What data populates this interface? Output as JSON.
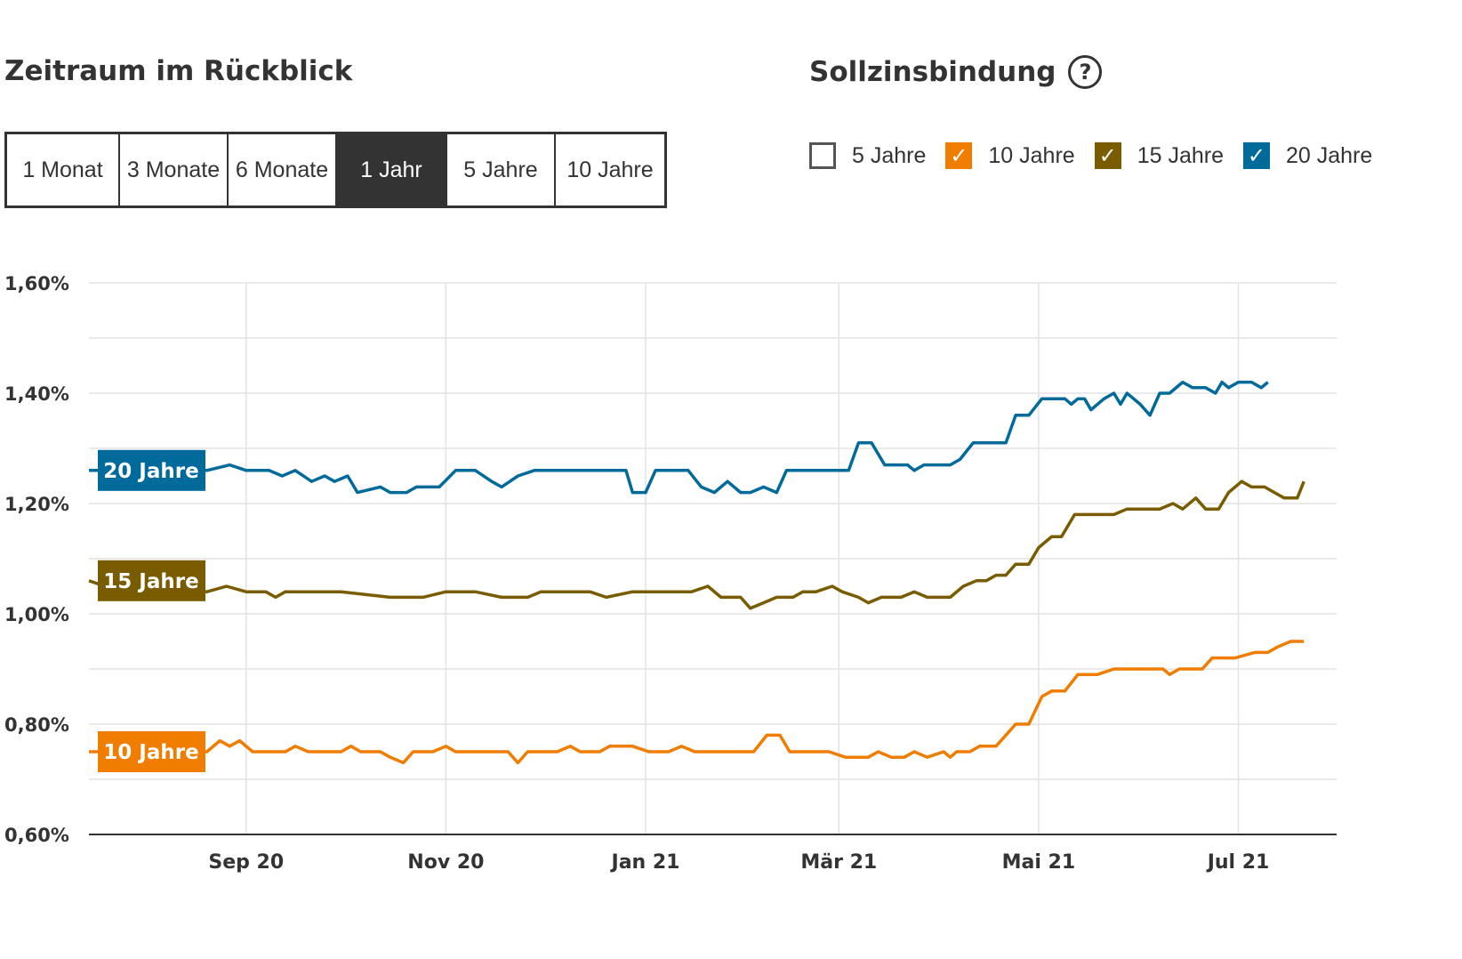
{
  "period": {
    "heading": "Zeitraum im Rückblick",
    "options": [
      {
        "label": "1 Monat",
        "active": false
      },
      {
        "label": "3 Monate",
        "active": false
      },
      {
        "label": "6 Monate",
        "active": false
      },
      {
        "label": "1 Jahr",
        "active": true
      },
      {
        "label": "5 Jahre",
        "active": false
      },
      {
        "label": "10 Jahre",
        "active": false
      }
    ]
  },
  "fixation": {
    "heading": "Sollzinsbindung",
    "help_icon": "question-circle-icon",
    "options": [
      {
        "label": "5 Jahre",
        "checked": false,
        "color": "#ffffff"
      },
      {
        "label": "10 Jahre",
        "checked": true,
        "color": "#f07d00"
      },
      {
        "label": "15 Jahre",
        "checked": true,
        "color": "#7a5c00"
      },
      {
        "label": "20 Jahre",
        "checked": true,
        "color": "#006b9a"
      }
    ]
  },
  "chart_data": {
    "type": "line",
    "title": "",
    "xlabel": "",
    "ylabel": "",
    "ylim": [
      0.6,
      1.6
    ],
    "y_ticks": [
      "0,60%",
      "0,80%",
      "1,00%",
      "1,20%",
      "1,40%",
      "1,60%"
    ],
    "x_ticks": [
      {
        "date": "2020-09-01",
        "label": "Sep 20"
      },
      {
        "date": "2020-11-01",
        "label": "Nov 20"
      },
      {
        "date": "2021-01-01",
        "label": "Jan 21"
      },
      {
        "date": "2021-03-01",
        "label": "Mär 21"
      },
      {
        "date": "2021-05-01",
        "label": "Mai 21"
      },
      {
        "date": "2021-07-01",
        "label": "Jul 21"
      }
    ],
    "x_range": [
      "2020-07-15",
      "2021-07-31"
    ],
    "grid": true,
    "series": [
      {
        "name": "20 Jahre",
        "color": "#006b9a",
        "points": [
          [
            "2020-07-15",
            1.26
          ],
          [
            "2020-08-20",
            1.26
          ],
          [
            "2020-08-27",
            1.27
          ],
          [
            "2020-09-01",
            1.26
          ],
          [
            "2020-09-08",
            1.26
          ],
          [
            "2020-09-12",
            1.25
          ],
          [
            "2020-09-16",
            1.26
          ],
          [
            "2020-09-21",
            1.24
          ],
          [
            "2020-09-25",
            1.25
          ],
          [
            "2020-09-28",
            1.24
          ],
          [
            "2020-10-02",
            1.25
          ],
          [
            "2020-10-05",
            1.22
          ],
          [
            "2020-10-12",
            1.23
          ],
          [
            "2020-10-15",
            1.22
          ],
          [
            "2020-10-20",
            1.22
          ],
          [
            "2020-10-23",
            1.23
          ],
          [
            "2020-10-30",
            1.23
          ],
          [
            "2020-11-04",
            1.26
          ],
          [
            "2020-11-10",
            1.26
          ],
          [
            "2020-11-15",
            1.24
          ],
          [
            "2020-11-18",
            1.23
          ],
          [
            "2020-11-23",
            1.25
          ],
          [
            "2020-11-28",
            1.26
          ],
          [
            "2020-12-05",
            1.26
          ],
          [
            "2020-12-15",
            1.26
          ],
          [
            "2020-12-20",
            1.26
          ],
          [
            "2020-12-26",
            1.26
          ],
          [
            "2020-12-28",
            1.22
          ],
          [
            "2021-01-01",
            1.22
          ],
          [
            "2021-01-04",
            1.26
          ],
          [
            "2021-01-08",
            1.26
          ],
          [
            "2021-01-14",
            1.26
          ],
          [
            "2021-01-18",
            1.23
          ],
          [
            "2021-01-22",
            1.22
          ],
          [
            "2021-01-26",
            1.24
          ],
          [
            "2021-01-30",
            1.22
          ],
          [
            "2021-02-02",
            1.22
          ],
          [
            "2021-02-06",
            1.23
          ],
          [
            "2021-02-10",
            1.22
          ],
          [
            "2021-02-13",
            1.26
          ],
          [
            "2021-02-18",
            1.26
          ],
          [
            "2021-02-22",
            1.26
          ],
          [
            "2021-02-25",
            1.26
          ],
          [
            "2021-03-04",
            1.26
          ],
          [
            "2021-03-07",
            1.31
          ],
          [
            "2021-03-11",
            1.31
          ],
          [
            "2021-03-15",
            1.27
          ],
          [
            "2021-03-22",
            1.27
          ],
          [
            "2021-03-24",
            1.26
          ],
          [
            "2021-03-27",
            1.27
          ],
          [
            "2021-03-30",
            1.27
          ],
          [
            "2021-04-04",
            1.27
          ],
          [
            "2021-04-07",
            1.28
          ],
          [
            "2021-04-11",
            1.31
          ],
          [
            "2021-04-18",
            1.31
          ],
          [
            "2021-04-21",
            1.31
          ],
          [
            "2021-04-24",
            1.36
          ],
          [
            "2021-04-28",
            1.36
          ],
          [
            "2021-05-02",
            1.39
          ],
          [
            "2021-05-09",
            1.39
          ],
          [
            "2021-05-11",
            1.38
          ],
          [
            "2021-05-13",
            1.39
          ],
          [
            "2021-05-15",
            1.39
          ],
          [
            "2021-05-17",
            1.37
          ],
          [
            "2021-05-19",
            1.38
          ],
          [
            "2021-05-21",
            1.39
          ],
          [
            "2021-05-24",
            1.4
          ],
          [
            "2021-05-26",
            1.38
          ],
          [
            "2021-05-28",
            1.4
          ],
          [
            "2021-06-01",
            1.38
          ],
          [
            "2021-06-04",
            1.36
          ],
          [
            "2021-06-07",
            1.4
          ],
          [
            "2021-06-10",
            1.4
          ],
          [
            "2021-06-14",
            1.42
          ],
          [
            "2021-06-17",
            1.41
          ],
          [
            "2021-06-21",
            1.41
          ],
          [
            "2021-06-24",
            1.4
          ],
          [
            "2021-06-26",
            1.42
          ],
          [
            "2021-06-28",
            1.41
          ],
          [
            "2021-07-01",
            1.42
          ],
          [
            "2021-07-03",
            1.42
          ],
          [
            "2021-07-05",
            1.42
          ],
          [
            "2021-07-08",
            1.41
          ],
          [
            "2021-07-10",
            1.42
          ]
        ]
      },
      {
        "name": "15 Jahre",
        "color": "#7a5c00",
        "points": [
          [
            "2020-07-15",
            1.06
          ],
          [
            "2020-07-20",
            1.05
          ],
          [
            "2020-08-20",
            1.04
          ],
          [
            "2020-08-26",
            1.05
          ],
          [
            "2020-09-01",
            1.04
          ],
          [
            "2020-09-07",
            1.04
          ],
          [
            "2020-09-10",
            1.03
          ],
          [
            "2020-09-13",
            1.04
          ],
          [
            "2020-09-30",
            1.04
          ],
          [
            "2020-10-15",
            1.03
          ],
          [
            "2020-10-25",
            1.03
          ],
          [
            "2020-11-01",
            1.04
          ],
          [
            "2020-11-10",
            1.04
          ],
          [
            "2020-11-18",
            1.03
          ],
          [
            "2020-11-26",
            1.03
          ],
          [
            "2020-11-30",
            1.04
          ],
          [
            "2020-12-15",
            1.04
          ],
          [
            "2020-12-20",
            1.03
          ],
          [
            "2020-12-28",
            1.04
          ],
          [
            "2021-01-05",
            1.04
          ],
          [
            "2021-01-10",
            1.04
          ],
          [
            "2021-01-15",
            1.04
          ],
          [
            "2021-01-20",
            1.05
          ],
          [
            "2021-01-24",
            1.03
          ],
          [
            "2021-01-30",
            1.03
          ],
          [
            "2021-02-02",
            1.01
          ],
          [
            "2021-02-06",
            1.02
          ],
          [
            "2021-02-10",
            1.03
          ],
          [
            "2021-02-15",
            1.03
          ],
          [
            "2021-02-18",
            1.04
          ],
          [
            "2021-02-22",
            1.04
          ],
          [
            "2021-02-27",
            1.05
          ],
          [
            "2021-03-02",
            1.04
          ],
          [
            "2021-03-07",
            1.03
          ],
          [
            "2021-03-10",
            1.02
          ],
          [
            "2021-03-14",
            1.03
          ],
          [
            "2021-03-20",
            1.03
          ],
          [
            "2021-03-24",
            1.04
          ],
          [
            "2021-03-28",
            1.03
          ],
          [
            "2021-04-04",
            1.03
          ],
          [
            "2021-04-08",
            1.05
          ],
          [
            "2021-04-12",
            1.06
          ],
          [
            "2021-04-15",
            1.06
          ],
          [
            "2021-04-18",
            1.07
          ],
          [
            "2021-04-21",
            1.07
          ],
          [
            "2021-04-24",
            1.09
          ],
          [
            "2021-04-28",
            1.09
          ],
          [
            "2021-05-01",
            1.12
          ],
          [
            "2021-05-05",
            1.14
          ],
          [
            "2021-05-08",
            1.14
          ],
          [
            "2021-05-12",
            1.18
          ],
          [
            "2021-05-19",
            1.18
          ],
          [
            "2021-05-24",
            1.18
          ],
          [
            "2021-05-28",
            1.19
          ],
          [
            "2021-06-01",
            1.19
          ],
          [
            "2021-06-07",
            1.19
          ],
          [
            "2021-06-11",
            1.2
          ],
          [
            "2021-06-14",
            1.19
          ],
          [
            "2021-06-18",
            1.21
          ],
          [
            "2021-06-21",
            1.19
          ],
          [
            "2021-06-25",
            1.19
          ],
          [
            "2021-06-28",
            1.22
          ],
          [
            "2021-07-02",
            1.24
          ],
          [
            "2021-07-05",
            1.23
          ],
          [
            "2021-07-09",
            1.23
          ],
          [
            "2021-07-12",
            1.22
          ],
          [
            "2021-07-15",
            1.21
          ],
          [
            "2021-07-19",
            1.21
          ],
          [
            "2021-07-21",
            1.24
          ]
        ]
      },
      {
        "name": "10 Jahre",
        "color": "#f07d00",
        "points": [
          [
            "2020-07-15",
            0.75
          ],
          [
            "2020-08-20",
            0.75
          ],
          [
            "2020-08-24",
            0.77
          ],
          [
            "2020-08-27",
            0.76
          ],
          [
            "2020-08-30",
            0.77
          ],
          [
            "2020-09-03",
            0.75
          ],
          [
            "2020-09-13",
            0.75
          ],
          [
            "2020-09-16",
            0.76
          ],
          [
            "2020-09-20",
            0.75
          ],
          [
            "2020-09-30",
            0.75
          ],
          [
            "2020-10-03",
            0.76
          ],
          [
            "2020-10-06",
            0.75
          ],
          [
            "2020-10-12",
            0.75
          ],
          [
            "2020-10-15",
            0.74
          ],
          [
            "2020-10-19",
            0.73
          ],
          [
            "2020-10-22",
            0.75
          ],
          [
            "2020-10-28",
            0.75
          ],
          [
            "2020-11-01",
            0.76
          ],
          [
            "2020-11-04",
            0.75
          ],
          [
            "2020-11-20",
            0.75
          ],
          [
            "2020-11-23",
            0.73
          ],
          [
            "2020-11-26",
            0.75
          ],
          [
            "2020-12-05",
            0.75
          ],
          [
            "2020-12-09",
            0.76
          ],
          [
            "2020-12-12",
            0.75
          ],
          [
            "2020-12-18",
            0.75
          ],
          [
            "2020-12-21",
            0.76
          ],
          [
            "2020-12-28",
            0.76
          ],
          [
            "2021-01-02",
            0.75
          ],
          [
            "2021-01-08",
            0.75
          ],
          [
            "2021-01-12",
            0.76
          ],
          [
            "2021-01-16",
            0.75
          ],
          [
            "2021-01-22",
            0.75
          ],
          [
            "2021-02-03",
            0.75
          ],
          [
            "2021-02-07",
            0.78
          ],
          [
            "2021-02-11",
            0.78
          ],
          [
            "2021-02-14",
            0.75
          ],
          [
            "2021-02-22",
            0.75
          ],
          [
            "2021-02-26",
            0.75
          ],
          [
            "2021-03-03",
            0.74
          ],
          [
            "2021-03-10",
            0.74
          ],
          [
            "2021-03-13",
            0.75
          ],
          [
            "2021-03-17",
            0.74
          ],
          [
            "2021-03-21",
            0.74
          ],
          [
            "2021-03-24",
            0.75
          ],
          [
            "2021-03-28",
            0.74
          ],
          [
            "2021-04-02",
            0.75
          ],
          [
            "2021-04-04",
            0.74
          ],
          [
            "2021-04-06",
            0.75
          ],
          [
            "2021-04-10",
            0.75
          ],
          [
            "2021-04-13",
            0.76
          ],
          [
            "2021-04-18",
            0.76
          ],
          [
            "2021-04-21",
            0.78
          ],
          [
            "2021-04-24",
            0.8
          ],
          [
            "2021-04-28",
            0.8
          ],
          [
            "2021-05-02",
            0.85
          ],
          [
            "2021-05-05",
            0.86
          ],
          [
            "2021-05-09",
            0.86
          ],
          [
            "2021-05-13",
            0.89
          ],
          [
            "2021-05-19",
            0.89
          ],
          [
            "2021-05-24",
            0.9
          ],
          [
            "2021-06-01",
            0.9
          ],
          [
            "2021-06-08",
            0.9
          ],
          [
            "2021-06-10",
            0.89
          ],
          [
            "2021-06-13",
            0.9
          ],
          [
            "2021-06-20",
            0.9
          ],
          [
            "2021-06-23",
            0.92
          ],
          [
            "2021-06-30",
            0.92
          ],
          [
            "2021-07-06",
            0.93
          ],
          [
            "2021-07-10",
            0.93
          ],
          [
            "2021-07-13",
            0.94
          ],
          [
            "2021-07-17",
            0.95
          ],
          [
            "2021-07-21",
            0.95
          ]
        ]
      }
    ]
  }
}
